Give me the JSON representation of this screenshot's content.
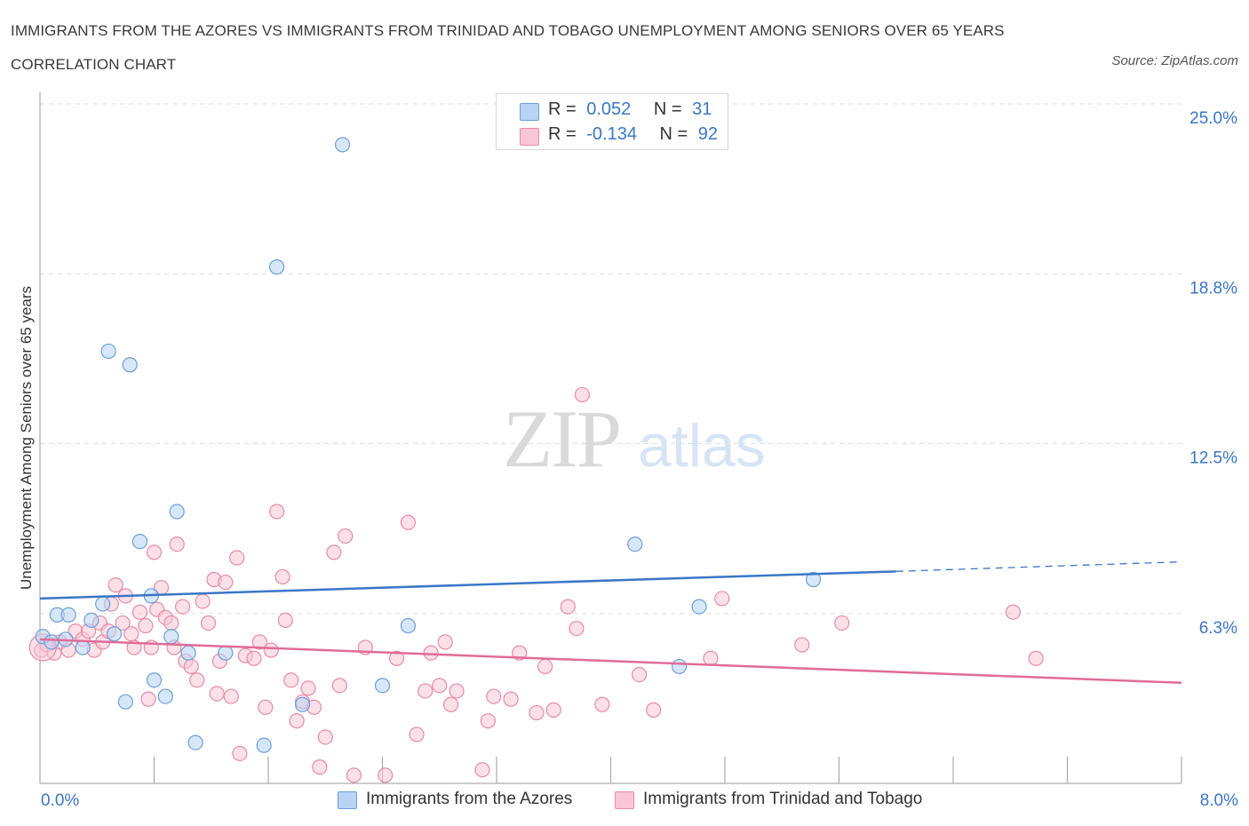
{
  "header": {
    "title": "IMMIGRANTS FROM THE AZORES VS IMMIGRANTS FROM TRINIDAD AND TOBAGO UNEMPLOYMENT AMONG SENIORS OVER 65 YEARS CORRELATION CHART",
    "source": "Source: ZipAtlas.com"
  },
  "colors": {
    "blue_fill": "#b8d3f3",
    "blue_stroke": "#6b9fdc",
    "blue_line": "#3a76c8",
    "pink_fill": "#f8c6d6",
    "pink_stroke": "#e88aa8",
    "pink_line": "#e06b97",
    "axis_label": "#3a76c8",
    "grid": "#dddddd"
  },
  "legend_top": {
    "rows": [
      {
        "r_label": "R =",
        "r_value": "0.052",
        "n_label": "N =",
        "n_value": "31"
      },
      {
        "r_label": "R =",
        "r_value": "-0.134",
        "n_label": "N =",
        "n_value": "92"
      }
    ]
  },
  "legend_bottom": {
    "items": [
      "Immigrants from the Azores",
      "Immigrants from Trinidad and Tobago"
    ]
  },
  "watermark": {
    "zip": "ZIP",
    "atlas": "atlas"
  },
  "chart_data": {
    "type": "scatter",
    "title": "IMMIGRANTS FROM THE AZORES VS IMMIGRANTS FROM TRINIDAD AND TOBAGO UNEMPLOYMENT AMONG SENIORS OVER 65 YEARS CORRELATION CHART",
    "xlabel": "",
    "ylabel": "Unemployment Among Seniors over 65 years",
    "xlim": [
      0,
      8.0
    ],
    "ylim": [
      0,
      25.0
    ],
    "x_tick_labels": [
      "0.0%",
      "8.0%"
    ],
    "y_tick_labels": [
      "25.0%",
      "18.8%",
      "12.5%",
      "6.3%"
    ],
    "y_ticks": [
      25.0,
      18.75,
      12.5,
      6.25
    ],
    "legend_position": "top-center",
    "series": [
      {
        "name": "Immigrants from the Azores",
        "R": 0.052,
        "N": 31,
        "trend": {
          "x0": 0.0,
          "y0": 6.8,
          "x1": 6.0,
          "y1": 7.8,
          "dashed_to_x": 8.0,
          "dashed_to_y": 8.15
        },
        "points": [
          [
            0.02,
            5.4
          ],
          [
            0.08,
            5.2
          ],
          [
            0.12,
            6.2
          ],
          [
            0.2,
            6.2
          ],
          [
            0.18,
            5.3
          ],
          [
            0.3,
            5.0
          ],
          [
            0.44,
            6.6
          ],
          [
            0.48,
            15.9
          ],
          [
            0.52,
            5.5
          ],
          [
            0.6,
            3.0
          ],
          [
            0.63,
            15.4
          ],
          [
            0.7,
            8.9
          ],
          [
            0.78,
            6.9
          ],
          [
            0.8,
            3.8
          ],
          [
            0.88,
            3.2
          ],
          [
            0.92,
            5.4
          ],
          [
            0.96,
            10.0
          ],
          [
            1.04,
            4.8
          ],
          [
            1.09,
            1.5
          ],
          [
            1.3,
            4.8
          ],
          [
            1.57,
            1.4
          ],
          [
            1.66,
            19.0
          ],
          [
            1.84,
            2.9
          ],
          [
            2.12,
            23.5
          ],
          [
            2.4,
            3.6
          ],
          [
            2.58,
            5.8
          ],
          [
            4.17,
            8.8
          ],
          [
            4.48,
            4.3
          ],
          [
            4.62,
            6.5
          ],
          [
            5.42,
            7.5
          ],
          [
            0.36,
            6.0
          ]
        ]
      },
      {
        "name": "Immigrants from Trinidad and Tobago",
        "R": -0.134,
        "N": 92,
        "trend": {
          "x0": 0.0,
          "y0": 5.3,
          "x1": 8.0,
          "y1": 3.7
        },
        "points": [
          [
            0.01,
            4.9
          ],
          [
            0.05,
            5.1
          ],
          [
            0.1,
            4.8
          ],
          [
            0.14,
            5.2
          ],
          [
            0.2,
            4.9
          ],
          [
            0.25,
            5.6
          ],
          [
            0.3,
            5.3
          ],
          [
            0.34,
            5.6
          ],
          [
            0.38,
            4.9
          ],
          [
            0.42,
            5.9
          ],
          [
            0.44,
            5.2
          ],
          [
            0.48,
            5.6
          ],
          [
            0.5,
            6.6
          ],
          [
            0.53,
            7.3
          ],
          [
            0.58,
            5.9
          ],
          [
            0.6,
            6.9
          ],
          [
            0.64,
            5.5
          ],
          [
            0.66,
            5.0
          ],
          [
            0.7,
            6.3
          ],
          [
            0.74,
            5.8
          ],
          [
            0.76,
            3.1
          ],
          [
            0.8,
            8.5
          ],
          [
            0.82,
            6.4
          ],
          [
            0.85,
            7.2
          ],
          [
            0.88,
            6.1
          ],
          [
            0.92,
            5.9
          ],
          [
            0.94,
            5.0
          ],
          [
            0.96,
            8.8
          ],
          [
            1.0,
            6.5
          ],
          [
            1.02,
            4.5
          ],
          [
            1.06,
            4.3
          ],
          [
            1.1,
            3.8
          ],
          [
            1.14,
            6.7
          ],
          [
            1.18,
            5.9
          ],
          [
            1.22,
            7.5
          ],
          [
            1.24,
            3.3
          ],
          [
            1.26,
            4.5
          ],
          [
            1.3,
            7.4
          ],
          [
            1.34,
            3.2
          ],
          [
            1.38,
            8.3
          ],
          [
            1.4,
            1.1
          ],
          [
            1.44,
            4.7
          ],
          [
            1.5,
            4.6
          ],
          [
            1.54,
            5.2
          ],
          [
            1.58,
            2.8
          ],
          [
            1.62,
            4.9
          ],
          [
            1.66,
            10.0
          ],
          [
            1.7,
            7.6
          ],
          [
            1.72,
            6.0
          ],
          [
            1.76,
            3.8
          ],
          [
            1.8,
            2.3
          ],
          [
            1.84,
            3.0
          ],
          [
            1.88,
            3.5
          ],
          [
            1.92,
            2.8
          ],
          [
            1.96,
            0.6
          ],
          [
            2.0,
            1.7
          ],
          [
            2.06,
            8.5
          ],
          [
            2.1,
            3.6
          ],
          [
            2.14,
            9.1
          ],
          [
            2.2,
            0.3
          ],
          [
            2.28,
            5.0
          ],
          [
            2.42,
            0.3
          ],
          [
            2.58,
            9.6
          ],
          [
            2.64,
            1.8
          ],
          [
            2.7,
            3.4
          ],
          [
            2.74,
            4.8
          ],
          [
            2.8,
            3.6
          ],
          [
            2.84,
            5.2
          ],
          [
            2.88,
            2.9
          ],
          [
            2.92,
            3.4
          ],
          [
            3.1,
            0.5
          ],
          [
            3.14,
            2.3
          ],
          [
            3.18,
            3.2
          ],
          [
            3.36,
            4.8
          ],
          [
            3.48,
            2.6
          ],
          [
            3.54,
            4.3
          ],
          [
            3.6,
            2.7
          ],
          [
            3.7,
            6.5
          ],
          [
            3.76,
            5.7
          ],
          [
            3.8,
            14.3
          ],
          [
            3.94,
            2.9
          ],
          [
            4.2,
            4.0
          ],
          [
            4.3,
            2.7
          ],
          [
            4.7,
            4.6
          ],
          [
            4.78,
            6.8
          ],
          [
            5.34,
            5.1
          ],
          [
            5.62,
            5.9
          ],
          [
            6.82,
            6.3
          ],
          [
            6.98,
            4.6
          ],
          [
            0.78,
            5.0
          ],
          [
            3.3,
            3.1
          ],
          [
            2.5,
            4.6
          ]
        ]
      }
    ]
  }
}
